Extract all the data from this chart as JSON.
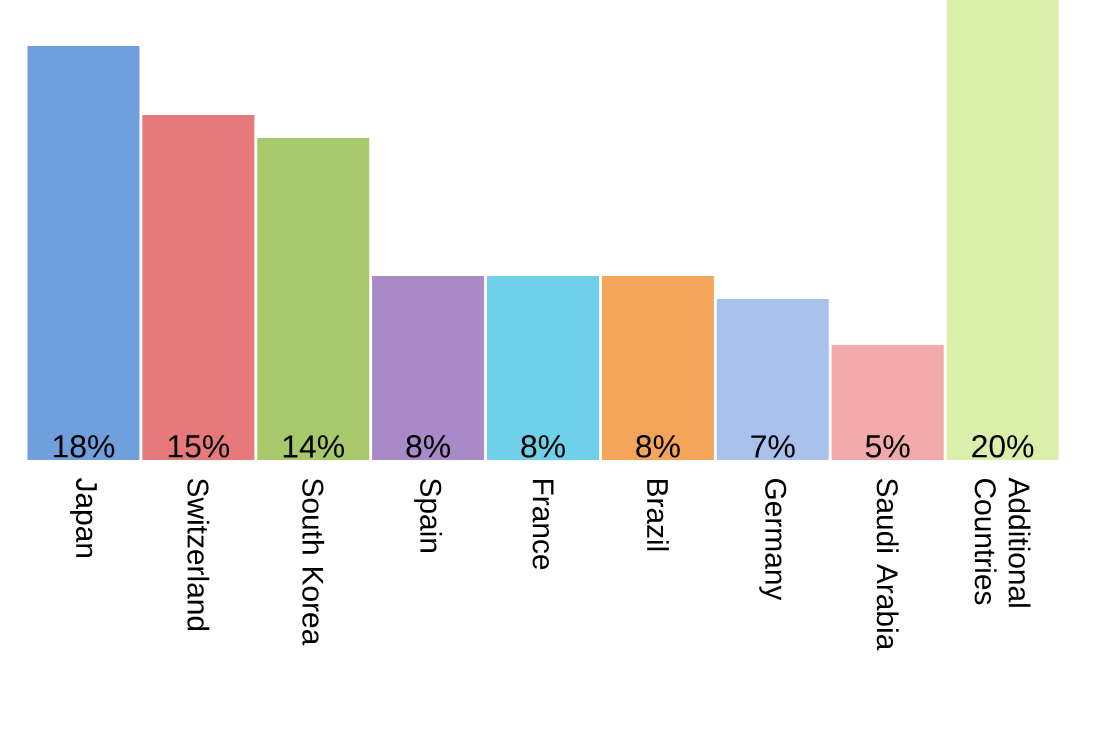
{
  "chart_data": {
    "type": "bar",
    "categories": [
      "Japan",
      "Switzerland",
      "South Korea",
      "Spain",
      "France",
      "Brazil",
      "Germany",
      "Saudi Arabia",
      "Additional Countries"
    ],
    "values": [
      18,
      15,
      14,
      8,
      8,
      8,
      7,
      5,
      20
    ],
    "value_labels": [
      "18%",
      "15%",
      "14%",
      "8%",
      "8%",
      "8%",
      "7%",
      "5%",
      "20%"
    ],
    "colors": [
      "#6f9fdc",
      "#e67a7a",
      "#a8c96b",
      "#a88ac8",
      "#6fd0ea",
      "#f5a55a",
      "#a9c2ec",
      "#f2a9a9",
      "#d9efaa"
    ],
    "tick_labels": "x"
  }
}
